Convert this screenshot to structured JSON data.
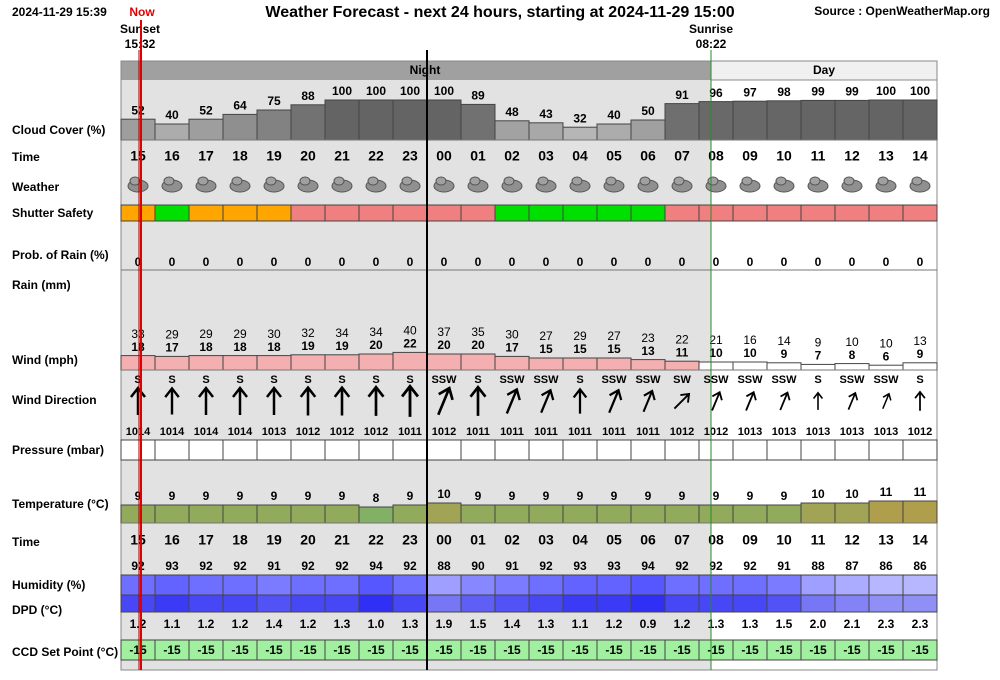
{
  "header": {
    "timestamp": "2024-11-29 15:39",
    "now_label": "Now",
    "title": "Weather Forecast - next 24 hours, starting at 2024-11-29 15:00",
    "source": "Source : OpenWeatherMap.org",
    "sunset_label": "Sunset",
    "sunset_time": "15:32",
    "sunrise_label": "Sunrise",
    "sunrise_time": "08:22",
    "night_label": "Night",
    "day_label": "Day"
  },
  "row_labels": {
    "cloud": "Cloud Cover (%)",
    "time": "Time",
    "weather": "Weather",
    "shutter": "Shutter Safety",
    "prob_rain": "Prob. of Rain (%)",
    "rain": "Rain (mm)",
    "wind": "Wind (mph)",
    "wind_dir": "Wind Direction",
    "pressure": "Pressure (mbar)",
    "temperature": "Temperature (°C)",
    "time2": "Time",
    "humidity": "Humidity (%)",
    "dpd": "DPD (°C)",
    "ccd": "CCD Set Point (°C)"
  },
  "hours": [
    "15",
    "16",
    "17",
    "18",
    "19",
    "20",
    "21",
    "22",
    "23",
    "00",
    "01",
    "02",
    "03",
    "04",
    "05",
    "06",
    "07",
    "08",
    "09",
    "10",
    "11",
    "12",
    "13",
    "14"
  ],
  "cloud_cover": [
    52,
    40,
    52,
    64,
    75,
    88,
    100,
    100,
    100,
    100,
    89,
    48,
    43,
    32,
    40,
    50,
    91,
    96,
    97,
    98,
    99,
    99,
    100,
    100
  ],
  "shutter_colors": [
    "#ffa500",
    "#00e000",
    "#ffa500",
    "#ffa500",
    "#ffa500",
    "#f08080",
    "#f08080",
    "#f08080",
    "#f08080",
    "#f08080",
    "#f08080",
    "#00e000",
    "#00e000",
    "#00e000",
    "#00e000",
    "#00e000",
    "#f08080",
    "#f08080",
    "#f08080",
    "#f08080",
    "#f08080",
    "#f08080",
    "#f08080",
    "#f08080"
  ],
  "prob_rain": [
    0,
    0,
    0,
    0,
    0,
    0,
    0,
    0,
    0,
    0,
    0,
    0,
    0,
    0,
    0,
    0,
    0,
    0,
    0,
    0,
    0,
    0,
    0,
    0
  ],
  "wind_gust": [
    33,
    29,
    29,
    29,
    30,
    32,
    34,
    34,
    40,
    37,
    35,
    30,
    27,
    29,
    27,
    23,
    22,
    21,
    16,
    14,
    9,
    10,
    10,
    13
  ],
  "wind": [
    18,
    17,
    18,
    18,
    18,
    19,
    19,
    20,
    22,
    20,
    20,
    17,
    15,
    15,
    15,
    13,
    11,
    10,
    10,
    9,
    7,
    8,
    6,
    9
  ],
  "wind_direction": [
    "S",
    "S",
    "S",
    "S",
    "S",
    "S",
    "S",
    "S",
    "S",
    "SSW",
    "S",
    "SSW",
    "SSW",
    "S",
    "SSW",
    "SSW",
    "SW",
    "SSW",
    "SSW",
    "SSW",
    "S",
    "SSW",
    "SSW",
    "S"
  ],
  "wind_arrow_deg": [
    0,
    0,
    0,
    0,
    0,
    0,
    0,
    0,
    0,
    22.5,
    0,
    22.5,
    22.5,
    0,
    22.5,
    22.5,
    45,
    22.5,
    22.5,
    22.5,
    0,
    22.5,
    22.5,
    0
  ],
  "pressure": [
    1014,
    1014,
    1014,
    1014,
    1013,
    1012,
    1012,
    1012,
    1011,
    1012,
    1011,
    1011,
    1011,
    1011,
    1011,
    1011,
    1012,
    1012,
    1013,
    1013,
    1013,
    1013,
    1013,
    1012
  ],
  "temperature": [
    9,
    9,
    9,
    9,
    9,
    9,
    9,
    8,
    9,
    10,
    9,
    9,
    9,
    9,
    9,
    9,
    9,
    9,
    9,
    9,
    10,
    10,
    11,
    11
  ],
  "humidity": [
    92,
    93,
    92,
    92,
    91,
    92,
    92,
    94,
    92,
    88,
    90,
    91,
    92,
    93,
    93,
    94,
    92,
    92,
    92,
    91,
    88,
    87,
    86,
    86
  ],
  "dpd": [
    "1.2",
    "1.1",
    "1.2",
    "1.2",
    "1.4",
    "1.2",
    "1.3",
    "1.0",
    "1.3",
    "1.9",
    "1.5",
    "1.4",
    "1.3",
    "1.1",
    "1.2",
    "0.9",
    "1.2",
    "1.3",
    "1.3",
    "1.5",
    "2.0",
    "2.1",
    "2.3",
    "2.3"
  ],
  "ccd_set_point": [
    -15,
    -15,
    -15,
    -15,
    -15,
    -15,
    -15,
    -15,
    -15,
    -15,
    -15,
    -15,
    -15,
    -15,
    -15,
    -15,
    -15,
    -15,
    -15,
    -15,
    -15,
    -15,
    -15,
    -15
  ]
}
